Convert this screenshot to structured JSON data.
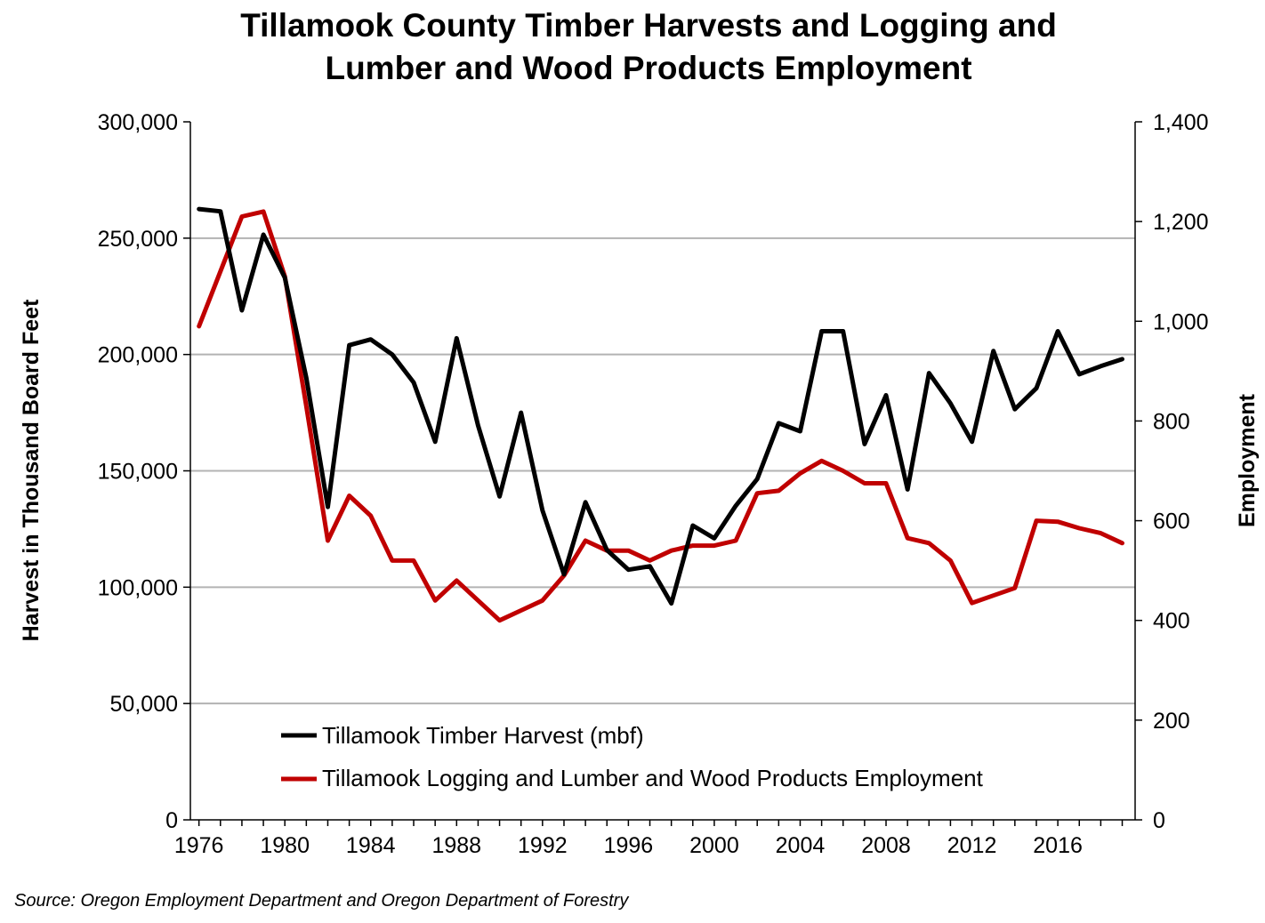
{
  "chart_data": {
    "type": "line",
    "title_lines": [
      "Tillamook County Timber Harvests and Logging and",
      "Lumber and Wood Products Employment"
    ],
    "ylabel_left": "Harvest in Thousand Board Feet",
    "ylabel_right": "Employment",
    "source": "Source: Oregon Employment Department and Oregon Department of Forestry",
    "x_ticks": [
      1976,
      1980,
      1984,
      1988,
      1992,
      1996,
      2000,
      2004,
      2008,
      2012,
      2016
    ],
    "y_left_ticks": [
      "0",
      "50,000",
      "100,000",
      "150,000",
      "200,000",
      "250,000",
      "300,000"
    ],
    "y_right_ticks": [
      "0",
      "200",
      "400",
      "600",
      "800",
      "1,000",
      "1,200",
      "1,400"
    ],
    "y_left_range": [
      0,
      300000
    ],
    "y_right_range": [
      0,
      1400
    ],
    "x_range": [
      1975.6,
      2019.6
    ],
    "grid": "horizontal",
    "legend_position": "bottom-center",
    "x": [
      1976,
      1977,
      1978,
      1979,
      1980,
      1981,
      1982,
      1983,
      1984,
      1985,
      1986,
      1987,
      1988,
      1989,
      1990,
      1991,
      1992,
      1993,
      1994,
      1995,
      1996,
      1997,
      1998,
      1999,
      2000,
      2001,
      2002,
      2003,
      2004,
      2005,
      2006,
      2007,
      2008,
      2009,
      2010,
      2011,
      2012,
      2013,
      2014,
      2015,
      2016,
      2017,
      2018,
      2019
    ],
    "series": [
      {
        "name": "Tillamook Timber Harvest (mbf)",
        "axis": "left",
        "color": "#000000",
        "values": [
          262500,
          261500,
          219000,
          251500,
          233000,
          190000,
          134500,
          204000,
          206500,
          200000,
          188000,
          162500,
          207000,
          169500,
          139000,
          175000,
          133000,
          105500,
          136500,
          116000,
          107500,
          109000,
          93000,
          126500,
          121000,
          135000,
          146500,
          170500,
          167000,
          210000,
          210000,
          161500,
          182500,
          142000,
          192000,
          179000,
          162500,
          201500,
          176500,
          185500,
          210000,
          191500,
          195000,
          198000
        ]
      },
      {
        "name": "Tillamook Logging and Lumber and Wood Products Employment",
        "axis": "right",
        "color": "#c00000",
        "values": [
          990,
          1100,
          1210,
          1220,
          1090,
          830,
          560,
          650,
          610,
          520,
          520,
          440,
          480,
          440,
          400,
          420,
          440,
          490,
          560,
          540,
          540,
          520,
          540,
          550,
          550,
          560,
          655,
          660,
          695,
          720,
          700,
          675,
          675,
          565,
          555,
          520,
          435,
          450,
          465,
          600,
          598,
          585,
          575,
          555
        ]
      }
    ]
  }
}
